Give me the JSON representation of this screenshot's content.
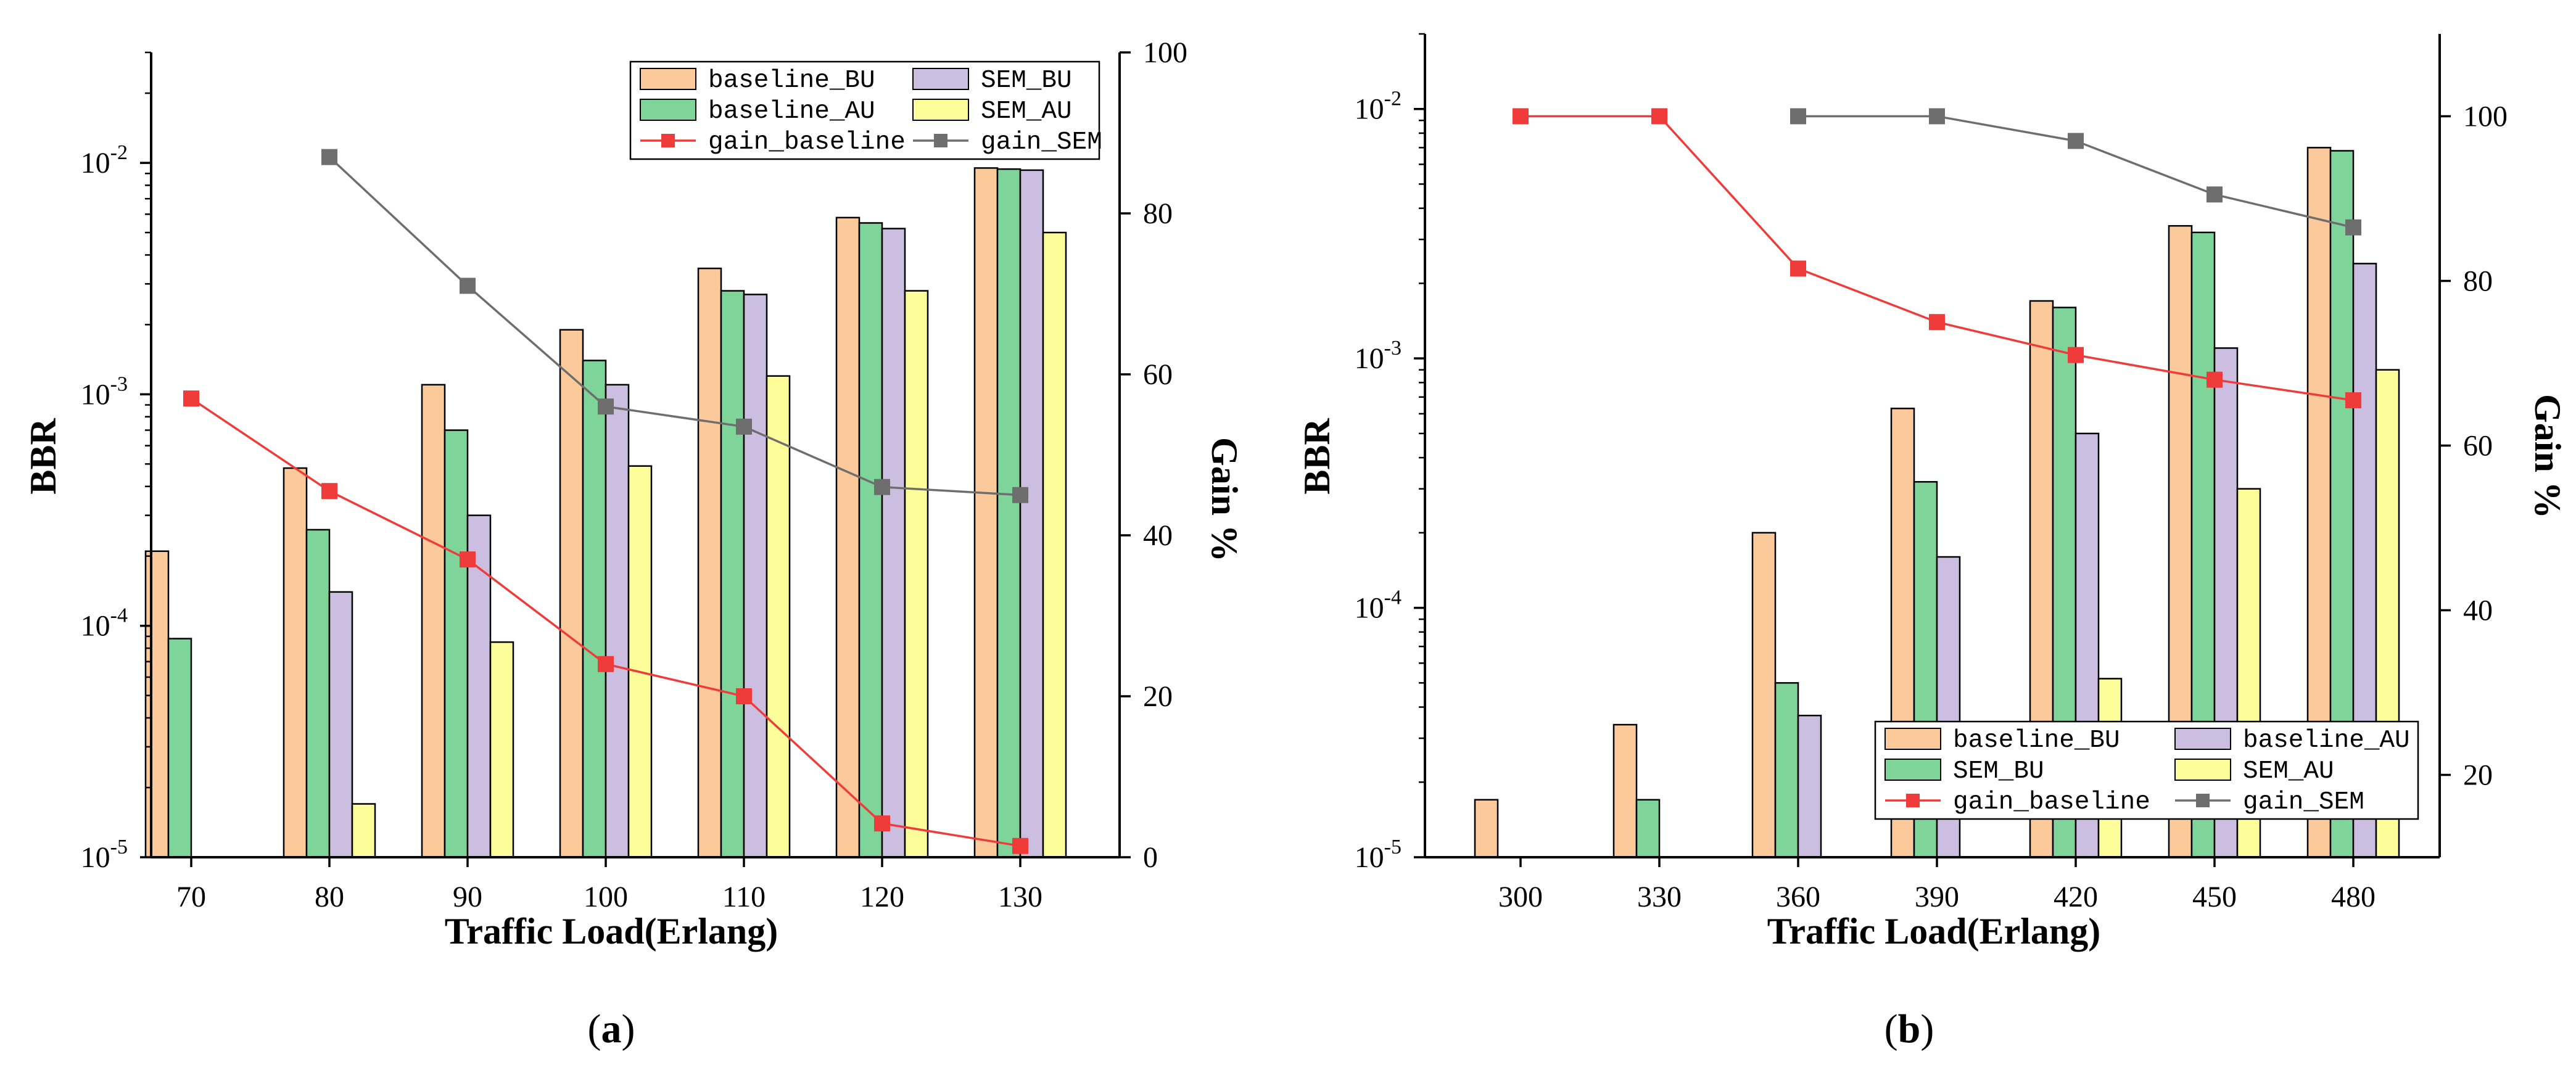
{
  "chart_data": [
    {
      "type": "bar",
      "panel": "a",
      "caption_open": "(",
      "caption_letter": "a",
      "caption_close": ")",
      "categories": [
        "70",
        "80",
        "90",
        "100",
        "110",
        "120",
        "130"
      ],
      "xlabel": "Traffic Load(Erlang)",
      "ylabel": "BBR",
      "y2label": "Gain %",
      "yscale": "log",
      "ylim": [
        1e-05,
        0.03
      ],
      "yticks": [
        1e-05,
        0.0001,
        0.001,
        0.01
      ],
      "yticklabels": [
        {
          "base": "10",
          "exp": "-5"
        },
        {
          "base": "10",
          "exp": "-4"
        },
        {
          "base": "10",
          "exp": "-3"
        },
        {
          "base": "10",
          "exp": "-2"
        }
      ],
      "y2lim": [
        0,
        100
      ],
      "y2ticks": [
        "0",
        "20",
        "40",
        "60",
        "80",
        "100"
      ],
      "series": [
        {
          "name": "baseline_BU",
          "color": "#FBC99A",
          "values": [
            0.00021,
            0.00048,
            0.0011,
            0.0019,
            0.0035,
            0.0058,
            0.0095
          ]
        },
        {
          "name": "baseline_AU",
          "color": "#7FD49A",
          "values": [
            8.8e-05,
            0.00026,
            0.0007,
            0.0014,
            0.0028,
            0.0055,
            0.0094
          ]
        },
        {
          "name": "SEM_BU",
          "color": "#CCBEE0",
          "values": [
            null,
            0.00014,
            0.0003,
            0.0011,
            0.0027,
            0.0052,
            0.0093
          ]
        },
        {
          "name": "SEM_AU",
          "color": "#FDFD9A",
          "values": [
            null,
            1.7e-05,
            8.5e-05,
            0.00049,
            0.0012,
            0.0028,
            0.005
          ]
        }
      ],
      "lines": [
        {
          "name": "gain_baseline",
          "color": "#F03B3B",
          "values": [
            57,
            45.5,
            37,
            24,
            20,
            4.2,
            1.4
          ]
        },
        {
          "name": "gain_SEM",
          "color": "#6E6E6E",
          "values": [
            null,
            87,
            71,
            56,
            53.5,
            46,
            45
          ]
        }
      ],
      "legend_order": [
        "baseline_BU",
        "SEM_BU",
        "baseline_AU",
        "SEM_AU",
        "gain_baseline",
        "gain_SEM"
      ],
      "legend_position": "top-right"
    },
    {
      "type": "bar",
      "panel": "b",
      "caption_open": "(",
      "caption_letter": "b",
      "caption_close": ")",
      "categories": [
        "300",
        "330",
        "360",
        "390",
        "420",
        "450",
        "480"
      ],
      "xlabel": "Traffic Load(Erlang)",
      "ylabel": "BBR",
      "y2label": "Gain %",
      "yscale": "log",
      "ylim": [
        1e-05,
        0.02
      ],
      "yticks": [
        1e-05,
        0.0001,
        0.001,
        0.01
      ],
      "yticklabels": [
        {
          "base": "10",
          "exp": "-5"
        },
        {
          "base": "10",
          "exp": "-4"
        },
        {
          "base": "10",
          "exp": "-3"
        },
        {
          "base": "10",
          "exp": "-2"
        }
      ],
      "y2lim": [
        10,
        110
      ],
      "y2ticks": [
        "20",
        "40",
        "60",
        "80",
        "100"
      ],
      "series": [
        {
          "name": "baseline_BU",
          "color": "#FBC99A",
          "values": [
            1.7e-05,
            3.4e-05,
            0.0002,
            0.00063,
            0.0017,
            0.0034,
            0.007
          ]
        },
        {
          "name": "SEM_BU",
          "color": "#7FD49A",
          "values": [
            null,
            1.7e-05,
            5e-05,
            0.00032,
            0.0016,
            0.0032,
            0.0068
          ]
        },
        {
          "name": "baseline_AU",
          "color": "#CCBEE0",
          "values": [
            null,
            null,
            3.7e-05,
            0.00016,
            0.0005,
            0.0011,
            0.0024
          ]
        },
        {
          "name": "SEM_AU",
          "color": "#FDFD9A",
          "values": [
            null,
            null,
            null,
            null,
            5.2e-05,
            0.0003,
            0.0009
          ]
        }
      ],
      "lines": [
        {
          "name": "gain_baseline",
          "color": "#F03B3B",
          "values": [
            100,
            100,
            81.5,
            75,
            71,
            68,
            65.5
          ]
        },
        {
          "name": "gain_SEM",
          "color": "#6E6E6E",
          "values": [
            null,
            null,
            100,
            100,
            97,
            90.5,
            86.5
          ]
        }
      ],
      "legend_order": [
        "baseline_BU",
        "baseline_AU",
        "SEM_BU",
        "SEM_AU",
        "gain_baseline",
        "gain_SEM"
      ],
      "legend_position": "lower-right"
    }
  ]
}
